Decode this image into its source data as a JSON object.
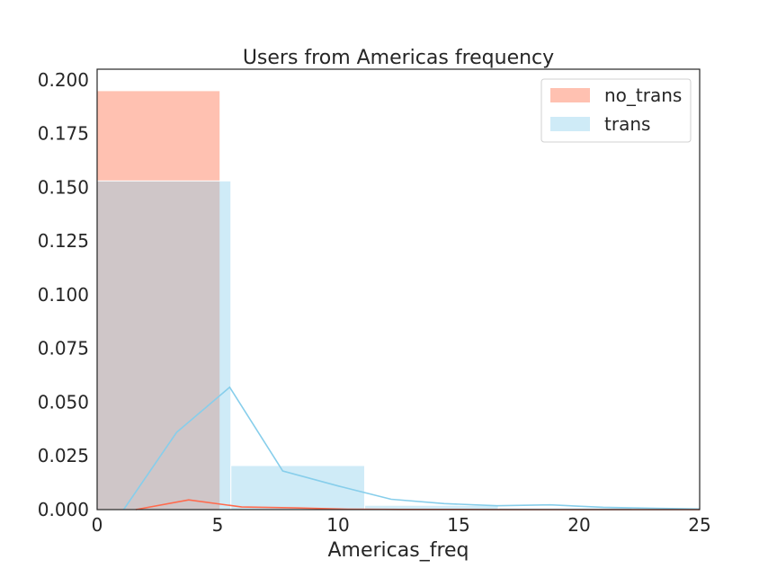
{
  "chart_data": {
    "type": "bar",
    "title": "Users from Americas frequency",
    "xlabel": "Americas_freq",
    "ylabel": "",
    "xlim": [
      0,
      25
    ],
    "ylim": [
      0,
      0.205
    ],
    "grid": false,
    "legend_position": "top-right",
    "x_ticks": [
      0,
      5,
      10,
      15,
      20,
      25
    ],
    "x_tick_labels": [
      "0",
      "5",
      "10",
      "15",
      "20",
      "25"
    ],
    "y_ticks": [
      0,
      0.025,
      0.05,
      0.075,
      0.1,
      0.125,
      0.15,
      0.175,
      0.2
    ],
    "y_tick_labels": [
      "0.000",
      "0.025",
      "0.050",
      "0.075",
      "0.100",
      "0.125",
      "0.150",
      "0.175",
      "0.200"
    ],
    "histograms": [
      {
        "name": "no_trans",
        "color": "#ff9f87",
        "opacity": 0.65,
        "bins": [
          {
            "x0": 0,
            "x1": 5.1,
            "value": 0.195
          }
        ]
      },
      {
        "name": "trans",
        "color": "#87ceeb",
        "opacity": 0.4,
        "bins": [
          {
            "x0": 0,
            "x1": 5.55,
            "value": 0.153
          },
          {
            "x0": 5.55,
            "x1": 11.1,
            "value": 0.0205
          },
          {
            "x0": 11.1,
            "x1": 16.65,
            "value": 0.002
          },
          {
            "x0": 16.65,
            "x1": 22.2,
            "value": 0.0008
          },
          {
            "x0": 22.2,
            "x1": 27.75,
            "value": 0.0004
          }
        ]
      }
    ],
    "kde_lines": [
      {
        "name": "trans",
        "color": "#87ceeb",
        "x": [
          1.1,
          3.3,
          5.5,
          7.7,
          10,
          12.2,
          14.4,
          16.6,
          18.8,
          21,
          23.2,
          25
        ],
        "y": [
          0,
          0.036,
          0.057,
          0.018,
          0.011,
          0.0048,
          0.0028,
          0.0018,
          0.0022,
          0.0011,
          0.0006,
          0.0003
        ]
      },
      {
        "name": "no_trans",
        "color": "#ff6a4d",
        "x": [
          1.6,
          3.8,
          6,
          8.2,
          10.4,
          12.6,
          14.8,
          17,
          19.2,
          21.4,
          23.6,
          25
        ],
        "y": [
          0,
          0.0045,
          0.0012,
          0.0008,
          0.0002,
          0.0001,
          0.0001,
          0,
          0,
          0,
          0,
          0
        ]
      }
    ],
    "legend": [
      {
        "label": "no_trans",
        "color": "#ff9f87"
      },
      {
        "label": "trans",
        "color": "#87ceeb"
      }
    ]
  }
}
